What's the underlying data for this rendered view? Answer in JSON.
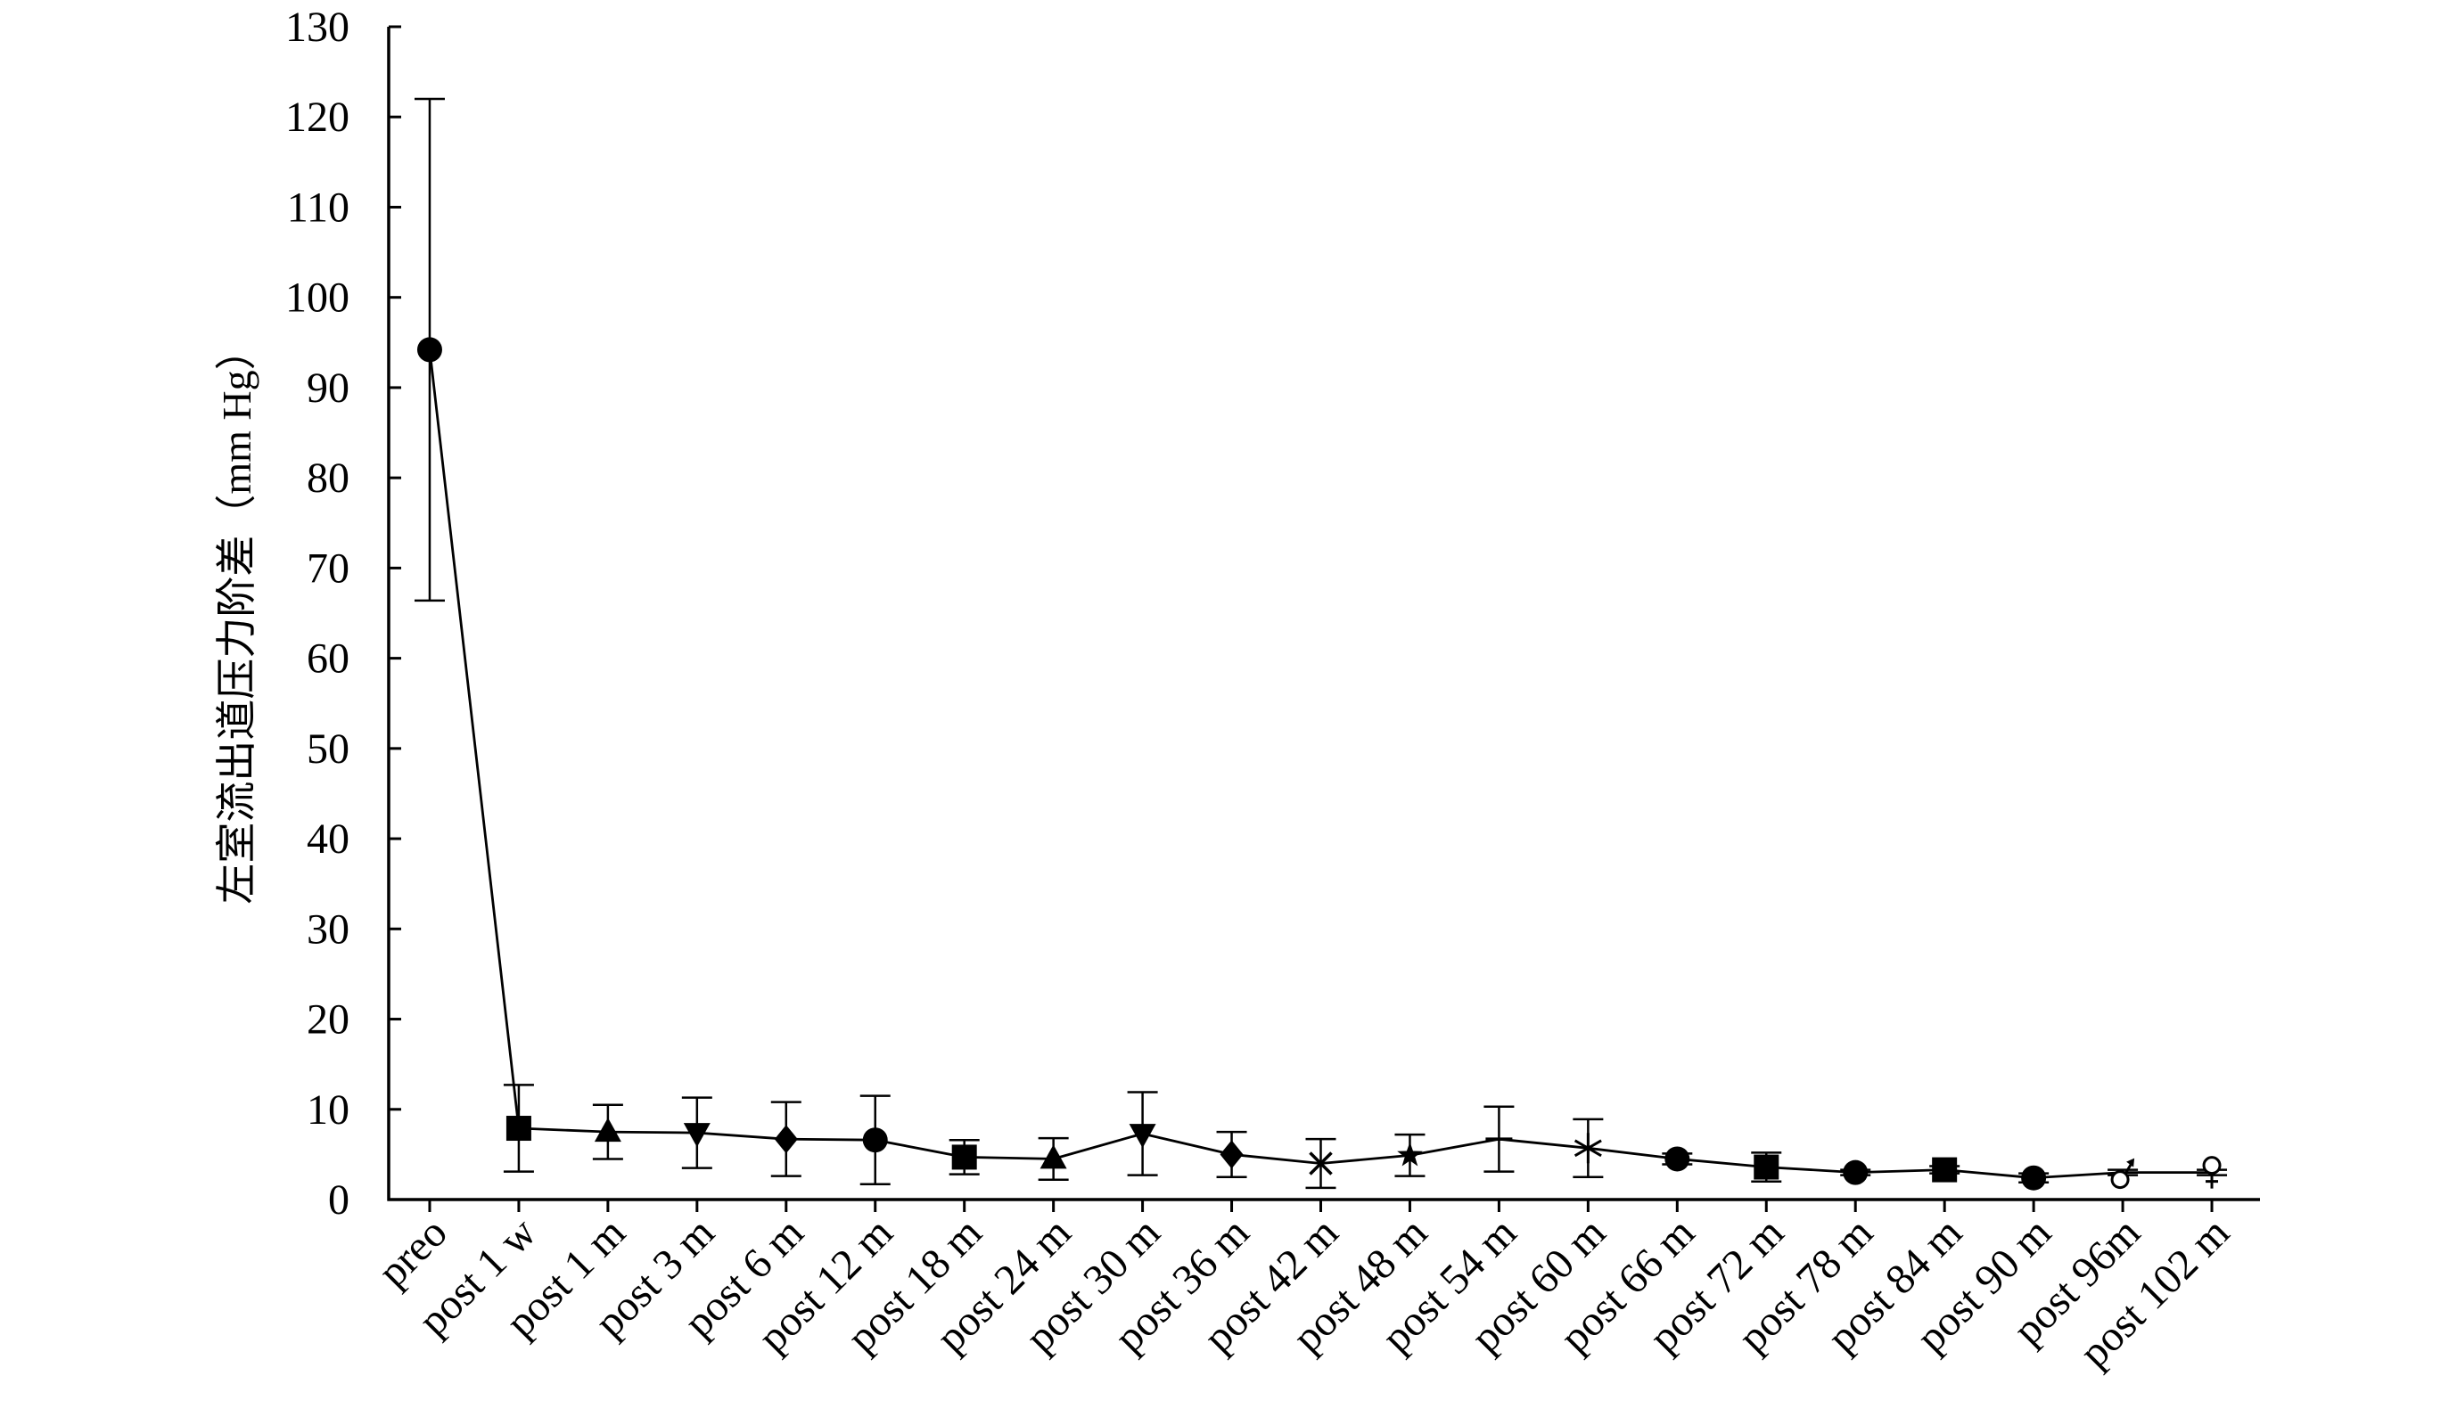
{
  "chart_data": {
    "type": "line",
    "ylabel": "左室流出道压力阶差（mm Hg）",
    "ylim": [
      0,
      130
    ],
    "yticks": [
      0,
      10,
      20,
      30,
      40,
      50,
      60,
      70,
      80,
      90,
      100,
      110,
      120,
      130
    ],
    "grid": false,
    "categories": [
      "preo",
      "post 1 w",
      "post 1 m",
      "post 3 m",
      "post 6 m",
      "post 12 m",
      "post 18 m",
      "post 24 m",
      "post 30 m",
      "post 36 m",
      "post 42 m",
      "post 48 m",
      "post 54 m",
      "post 60 m",
      "post 66 m",
      "post 72 m",
      "post 78 m",
      "post 84 m",
      "post 90 m",
      "post 96m",
      "post 102 m"
    ],
    "series": [
      {
        "color": "#000000",
        "values": [
          94.2,
          7.9,
          7.5,
          7.4,
          6.7,
          6.6,
          4.7,
          4.5,
          7.3,
          5.0,
          4.0,
          4.9,
          6.7,
          5.7,
          4.5,
          3.6,
          3.0,
          3.3,
          2.4,
          3.0,
          3.0
        ],
        "errors": [
          27.8,
          4.8,
          3.0,
          3.9,
          4.1,
          4.9,
          1.9,
          2.3,
          4.6,
          2.5,
          2.7,
          2.3,
          3.6,
          3.2,
          0.6,
          1.6,
          0.3,
          0.4,
          0.5,
          0.3,
          0.3
        ],
        "markers": [
          "circle",
          "square",
          "triangle-up",
          "triangle-down",
          "diamond",
          "circle",
          "square",
          "triangle-up",
          "triangle-down",
          "diamond",
          "x-cross",
          "star",
          "dash",
          "asterisk",
          "circle",
          "square",
          "circle",
          "square",
          "circle",
          "male-symbol",
          "female-symbol"
        ]
      }
    ]
  }
}
